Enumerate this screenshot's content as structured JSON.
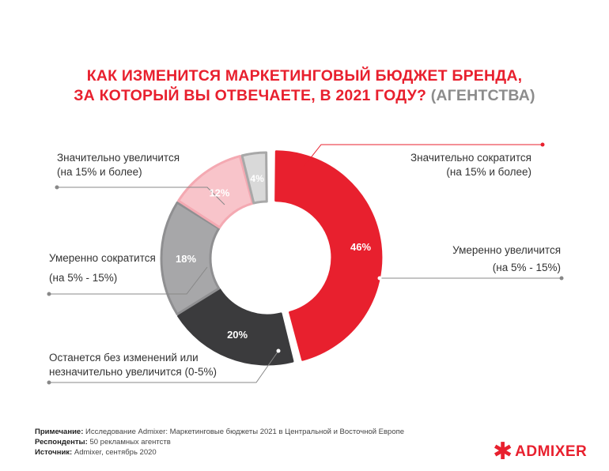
{
  "title": {
    "line1": "КАК ИЗМЕНИТСЯ МАРКЕТИНГОВЫЙ БЮДЖЕТ БРЕНДА,",
    "line2_main": "ЗА КОТОРЫЙ ВЫ ОТВЕЧАЕТЕ, В 2021 ГОДУ?",
    "line2_suffix": "(АГЕНТСТВА)"
  },
  "chart_data": {
    "type": "pie",
    "variant": "donut",
    "categories": [
      "Умеренно увеличится (на 5% - 15%)",
      "Останется без изменений или незначительно увеличится (0-5%)",
      "Умеренно сократится (на 5% - 15%)",
      "Значительно увеличится (на 15% и более)",
      "Значительно сократится (на 15% и более)"
    ],
    "values": [
      46,
      20,
      18,
      12,
      4
    ],
    "data_labels": [
      "46%",
      "20%",
      "18%",
      "12%",
      "4%"
    ],
    "colors": [
      "#e8202e",
      "#3b3b3d",
      "#a7a7a9",
      "#f8c4ca",
      "#d9d9d9"
    ]
  },
  "labels": {
    "sig_increase_1": "Значительно увеличится",
    "sig_increase_2": "(на 15% и более)",
    "sig_decrease_1": "Значительно сократится",
    "sig_decrease_2": "(на 15% и более)",
    "mod_decrease_1": "Умеренно сократится",
    "mod_decrease_2": "(на 5% - 15%)",
    "mod_increase_1": "Умеренно увеличится",
    "mod_increase_2": "(на 5% - 15%)",
    "nochange_1": "Останется без изменений или",
    "nochange_2": "незначительно увеличится (0-5%)"
  },
  "notes": {
    "note_label": "Примечание:",
    "note_text": "Исследование Admixer: Маркетинговые бюджеты 2021 в Центральной и Восточной Европе",
    "resp_label": "Респонденты:",
    "resp_text": "50 рекламных агентств",
    "source_label": "Источник:",
    "source_text": "Admixer, сентябрь 2020"
  },
  "logo": {
    "text": "ADMIXER",
    "star": "✱"
  }
}
